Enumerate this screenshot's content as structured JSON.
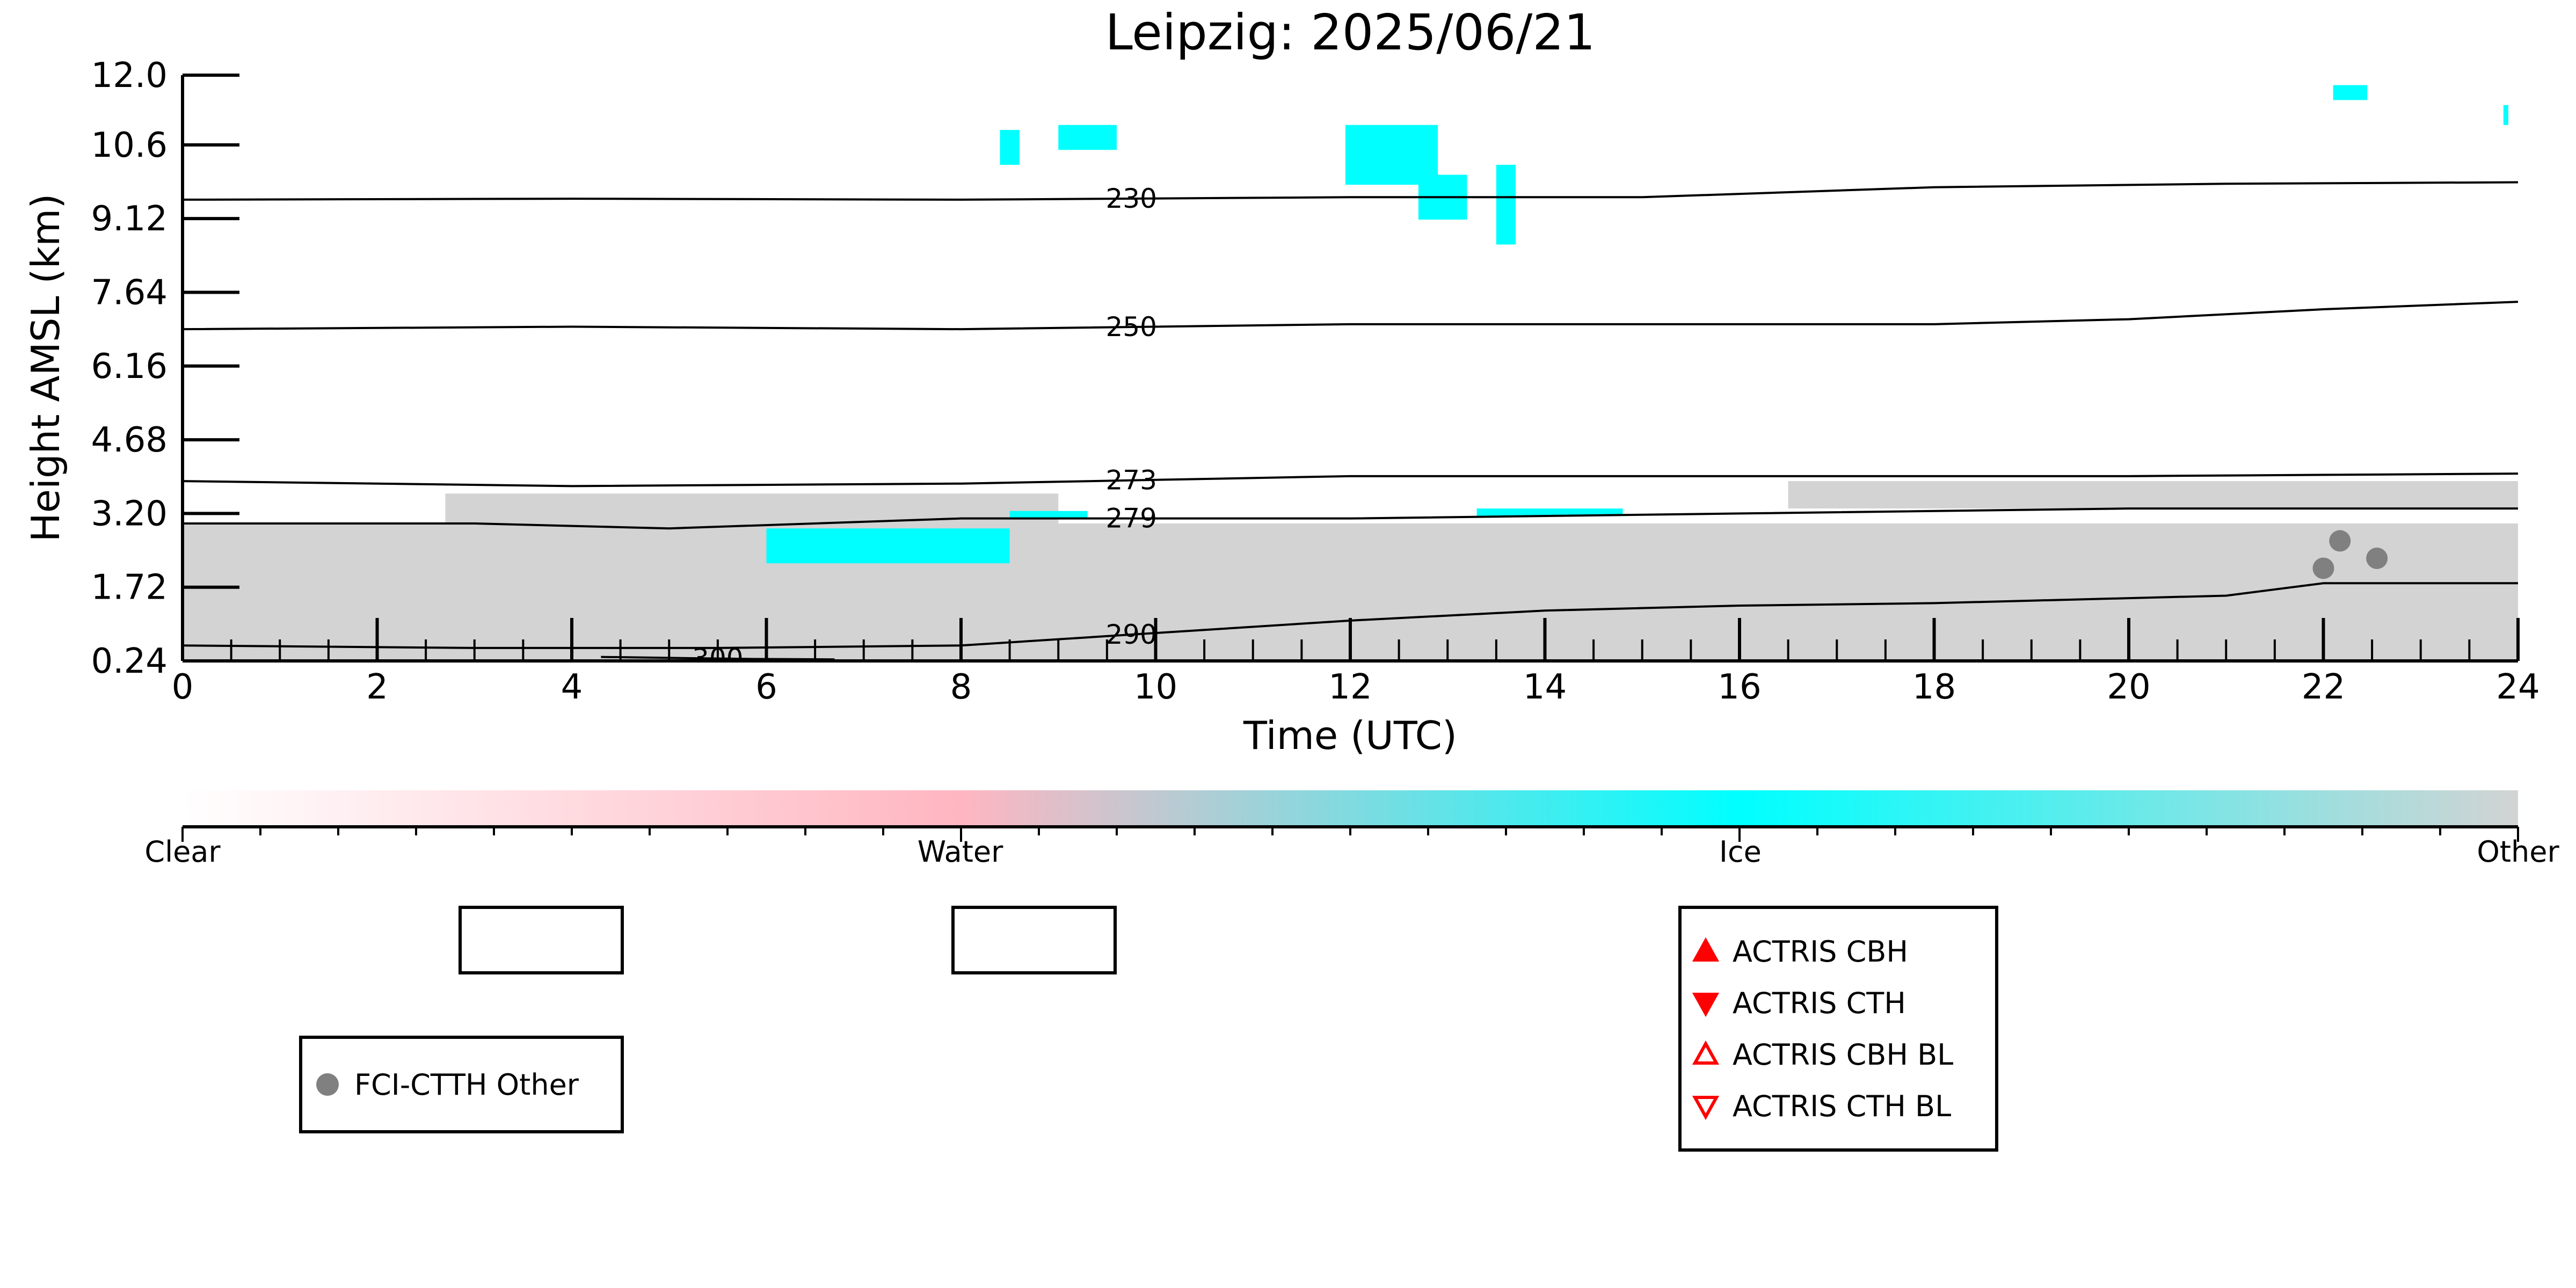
{
  "chart_data": {
    "type": "time-height cloud classification",
    "title": "Leipzig: 2025/06/21",
    "xlabel": "Time (UTC)",
    "ylabel": "Height AMSL (km)",
    "xlim": [
      0,
      24
    ],
    "ylim": [
      0.24,
      12.0
    ],
    "x_ticks": [
      0,
      2,
      4,
      6,
      8,
      10,
      12,
      14,
      16,
      18,
      20,
      22,
      24
    ],
    "y_ticks": [
      "0.24",
      "1.72",
      "3.20",
      "4.68",
      "6.16",
      "7.64",
      "9.12",
      "10.6",
      "12.0"
    ],
    "colors": {
      "clear": "#ffffff",
      "water": "#ffb6c1",
      "ice": "#00ffff",
      "other": "#d3d3d3",
      "fci_marker": "#808080",
      "actris": "#ff0000"
    },
    "regions": [
      {
        "class": "Other",
        "x": [
          0,
          24
        ],
        "y": [
          0.24,
          3.0
        ]
      },
      {
        "class": "Other",
        "x": [
          2.7,
          9.0
        ],
        "y": [
          3.0,
          3.6
        ]
      },
      {
        "class": "Other",
        "x": [
          16.5,
          24
        ],
        "y": [
          3.3,
          3.85
        ]
      },
      {
        "class": "Ice",
        "x": [
          6.0,
          8.5
        ],
        "y": [
          2.2,
          2.9
        ]
      },
      {
        "class": "Ice",
        "x": [
          8.5,
          9.3
        ],
        "y": [
          3.1,
          3.25
        ]
      },
      {
        "class": "Ice",
        "x": [
          13.3,
          14.8
        ],
        "y": [
          3.15,
          3.3
        ]
      },
      {
        "class": "Ice",
        "x": [
          8.4,
          8.6
        ],
        "y": [
          10.2,
          10.9
        ]
      },
      {
        "class": "Ice",
        "x": [
          9.0,
          9.6
        ],
        "y": [
          10.5,
          11.0
        ]
      },
      {
        "class": "Ice",
        "x": [
          11.95,
          12.9
        ],
        "y": [
          9.8,
          11.0
        ]
      },
      {
        "class": "Ice",
        "x": [
          12.7,
          13.2
        ],
        "y": [
          9.1,
          10.0
        ]
      },
      {
        "class": "Ice",
        "x": [
          13.5,
          13.7
        ],
        "y": [
          8.6,
          10.2
        ]
      },
      {
        "class": "Ice",
        "x": [
          22.1,
          22.45
        ],
        "y": [
          11.5,
          11.8
        ]
      },
      {
        "class": "Ice",
        "x": [
          23.85,
          23.9
        ],
        "y": [
          11.0,
          11.4
        ]
      }
    ],
    "contours": [
      {
        "label": "230",
        "x": [
          0,
          4,
          8,
          12,
          15,
          18,
          21,
          24
        ],
        "y": [
          9.5,
          9.52,
          9.5,
          9.55,
          9.55,
          9.75,
          9.82,
          9.85
        ]
      },
      {
        "label": "250",
        "x": [
          0,
          4,
          8,
          12,
          16,
          18,
          20,
          22,
          24
        ],
        "y": [
          6.9,
          6.95,
          6.9,
          7.0,
          7.0,
          7.0,
          7.1,
          7.3,
          7.45
        ]
      },
      {
        "label": "273",
        "x": [
          0,
          4,
          8,
          12,
          16,
          20,
          24
        ],
        "y": [
          3.85,
          3.75,
          3.8,
          3.95,
          3.95,
          3.95,
          4.0
        ]
      },
      {
        "label": "279",
        "x": [
          0,
          3,
          5,
          8,
          12,
          16,
          20,
          24
        ],
        "y": [
          3.0,
          3.0,
          2.9,
          3.1,
          3.1,
          3.2,
          3.3,
          3.3
        ]
      },
      {
        "label": "290",
        "x": [
          0,
          3,
          5.5,
          8,
          10,
          12,
          14,
          16,
          18,
          19,
          20,
          21,
          22,
          24
        ],
        "y": [
          0.55,
          0.5,
          0.5,
          0.55,
          0.8,
          1.05,
          1.25,
          1.35,
          1.4,
          1.45,
          1.5,
          1.55,
          1.8,
          1.8
        ]
      },
      {
        "label": "300",
        "x": [
          4.3,
          5.0,
          5.8,
          6.7
        ],
        "y": [
          0.32,
          0.3,
          0.28,
          0.27
        ]
      }
    ],
    "markers": [
      {
        "series": "FCI-CTTH Other",
        "x": 22.0,
        "y": 2.1
      },
      {
        "series": "FCI-CTTH Other",
        "x": 22.17,
        "y": 2.65
      },
      {
        "series": "FCI-CTTH Other",
        "x": 22.55,
        "y": 2.3
      }
    ],
    "colorbar": {
      "labels": [
        "Clear",
        "Water",
        "Ice",
        "Other"
      ],
      "positions": [
        0,
        0.333,
        0.667,
        1.0
      ]
    },
    "legends": {
      "fci": [
        "FCI-CTTH Other"
      ],
      "actris": [
        "ACTRIS CBH",
        "ACTRIS CTH",
        "ACTRIS CBH BL",
        "ACTRIS CTH BL"
      ]
    }
  }
}
